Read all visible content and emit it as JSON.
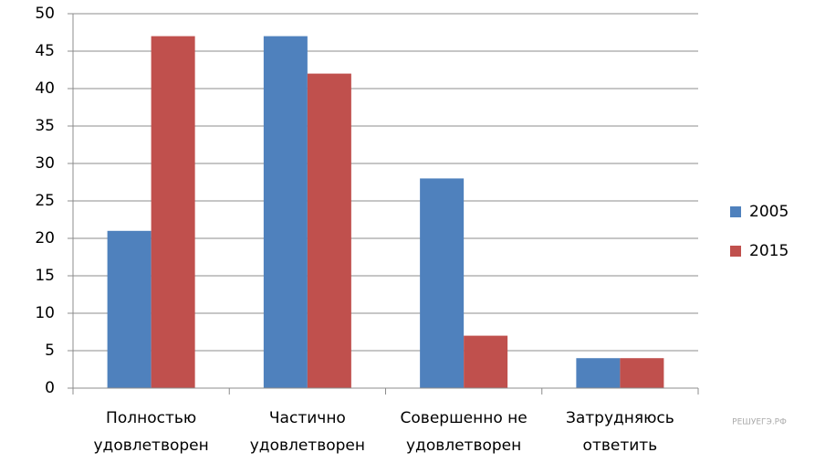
{
  "chart_data": {
    "type": "bar",
    "categories": [
      [
        "Полностью",
        "удовлетворен"
      ],
      [
        "Частично",
        "удовлетворен"
      ],
      [
        "Совершенно не",
        "удовлетворен"
      ],
      [
        "Затрудняюсь",
        "ответить"
      ]
    ],
    "series": [
      {
        "name": "2005",
        "color": "#4f81bd",
        "values": [
          21,
          47,
          28,
          4
        ]
      },
      {
        "name": "2015",
        "color": "#c0504d",
        "values": [
          47,
          42,
          7,
          4
        ]
      }
    ],
    "ylim": [
      0,
      50
    ],
    "yticks": [
      0,
      5,
      10,
      15,
      20,
      25,
      30,
      35,
      40,
      45,
      50
    ],
    "grid": true,
    "legend": "right"
  },
  "watermark": "РЕШУЕГЭ.РФ"
}
